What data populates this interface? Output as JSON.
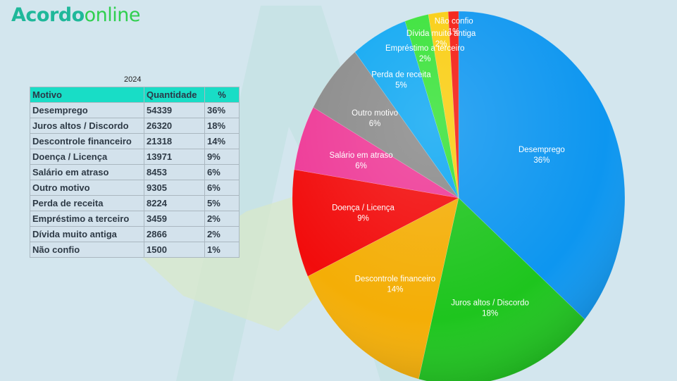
{
  "brand": {
    "part1": "A",
    "part2": "cordo",
    "part3": "online"
  },
  "table": {
    "year": "2024",
    "headers": [
      "Motivo",
      "Quantidade",
      "%"
    ],
    "rows": [
      [
        "Desemprego",
        "54339",
        "36%"
      ],
      [
        "Juros altos / Discordo",
        "26320",
        "18%"
      ],
      [
        "Descontrole financeiro",
        "21318",
        "14%"
      ],
      [
        "Doença / Licença",
        "13971",
        "9%"
      ],
      [
        "Salário em atraso",
        "8453",
        "6%"
      ],
      [
        "Outro motivo",
        "9305",
        "6%"
      ],
      [
        "Perda de receita",
        "8224",
        "5%"
      ],
      [
        "Empréstimo a terceiro",
        "3459",
        "2%"
      ],
      [
        "Dívida muito antiga",
        "2866",
        "2%"
      ],
      [
        "Não confio",
        "1500",
        "1%"
      ]
    ]
  },
  "chart_data": {
    "type": "pie",
    "categories": [
      "Desemprego",
      "Juros altos / Discordo",
      "Descontrole financeiro",
      "Doença / Licença",
      "Salário em atraso",
      "Outro motivo",
      "Perda de receita",
      "Empréstimo a terceiro",
      "Dívida muito antiga",
      "Não confio"
    ],
    "values": [
      54339,
      26320,
      21318,
      13971,
      8453,
      9305,
      8224,
      3459,
      2866,
      1500
    ],
    "percent_labels": [
      "36%",
      "18%",
      "14%",
      "9%",
      "6%",
      "6%",
      "5%",
      "2%",
      "2%",
      "1%"
    ],
    "colors": [
      "#0d96f0",
      "#1ec51e",
      "#f4ae06",
      "#f20c0c",
      "#ee3a97",
      "#8a8a8a",
      "#0fa8f2",
      "#37e237",
      "#f9cd0e",
      "#f41a10"
    ],
    "start": "12 o'clock",
    "direction": "clockwise"
  }
}
